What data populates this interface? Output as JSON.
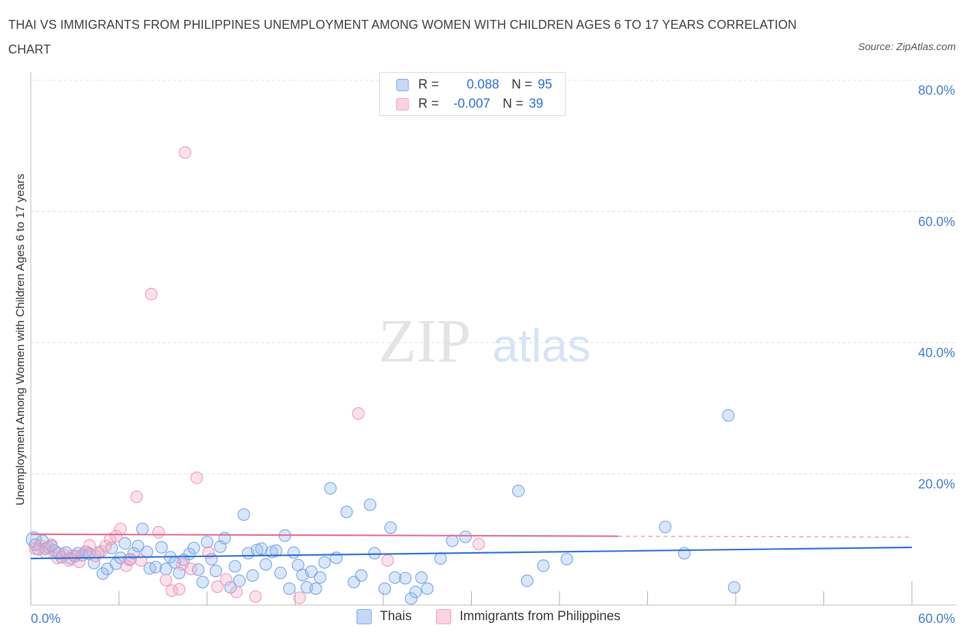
{
  "title": "THAI VS IMMIGRANTS FROM PHILIPPINES UNEMPLOYMENT AMONG WOMEN WITH CHILDREN AGES 6 TO 17 YEARS CORRELATION CHART",
  "source": "Source: ZipAtlas.com",
  "watermark": {
    "zip": "ZIP",
    "atlas": "atlas"
  },
  "legend_top": {
    "r_label": "R =",
    "n_label": "N =",
    "rows": [
      {
        "series": "Thais",
        "r": "0.088",
        "n": "95"
      },
      {
        "series": "Immigrants from Philippines",
        "r": "-0.007",
        "n": "39"
      }
    ]
  },
  "chart_data": {
    "type": "scatter",
    "title": "THAI VS IMMIGRANTS FROM PHILIPPINES UNEMPLOYMENT AMONG WOMEN WITH CHILDREN AGES 6 TO 17 YEARS CORRELATION CHART",
    "xlabel": "",
    "ylabel": "Unemployment Among Women with Children Ages 6 to 17 years",
    "xlim": [
      0,
      60
    ],
    "ylim": [
      0,
      80
    ],
    "x_tick_labels": [
      "0.0%",
      "60.0%"
    ],
    "y_tick_values": [
      20,
      40,
      60,
      80
    ],
    "y_tick_labels": [
      "20.0%",
      "40.0%",
      "60.0%",
      "80.0%"
    ],
    "grid": true,
    "colors": {
      "Thais": "#7aa6e8",
      "Immigrants from Philippines": "#f29bb7",
      "thais_line": "#2a6fd0",
      "phil_line": "#e06b93",
      "tick_label": "#3f7bd0"
    },
    "series": [
      {
        "name": "Thais",
        "trend": {
          "x": [
            0,
            60
          ],
          "y": [
            7.1,
            8.8
          ]
        },
        "points": [
          [
            0.2,
            10.0
          ],
          [
            0.3,
            9.2
          ],
          [
            0.5,
            8.5
          ],
          [
            0.8,
            9.8
          ],
          [
            1.0,
            8.6
          ],
          [
            1.2,
            8.8
          ],
          [
            1.4,
            9.0
          ],
          [
            1.6,
            8.3
          ],
          [
            1.9,
            7.9
          ],
          [
            2.1,
            7.3
          ],
          [
            2.4,
            8.0
          ],
          [
            2.7,
            7.1
          ],
          [
            3.0,
            7.4
          ],
          [
            3.2,
            7.9
          ],
          [
            3.5,
            7.6
          ],
          [
            3.8,
            8.1
          ],
          [
            4.0,
            7.8
          ],
          [
            4.3,
            6.4
          ],
          [
            4.6,
            8.0
          ],
          [
            4.9,
            4.8
          ],
          [
            5.2,
            5.5
          ],
          [
            5.5,
            8.7
          ],
          [
            5.8,
            6.3
          ],
          [
            6.1,
            7.2
          ],
          [
            6.4,
            9.4
          ],
          [
            6.7,
            6.9
          ],
          [
            7.0,
            7.9
          ],
          [
            7.3,
            9.0
          ],
          [
            7.6,
            11.6
          ],
          [
            7.9,
            8.1
          ],
          [
            8.1,
            5.6
          ],
          [
            8.5,
            5.8
          ],
          [
            8.9,
            8.8
          ],
          [
            9.2,
            5.5
          ],
          [
            9.5,
            7.3
          ],
          [
            9.8,
            6.5
          ],
          [
            10.1,
            4.9
          ],
          [
            10.4,
            6.9
          ],
          [
            10.8,
            7.8
          ],
          [
            11.1,
            8.7
          ],
          [
            11.4,
            5.4
          ],
          [
            11.7,
            3.5
          ],
          [
            12.0,
            9.6
          ],
          [
            12.3,
            7.0
          ],
          [
            12.6,
            5.2
          ],
          [
            12.9,
            8.9
          ],
          [
            13.2,
            10.2
          ],
          [
            13.6,
            2.7
          ],
          [
            13.9,
            5.9
          ],
          [
            14.2,
            3.7
          ],
          [
            14.5,
            13.8
          ],
          [
            14.8,
            7.9
          ],
          [
            15.1,
            4.5
          ],
          [
            15.4,
            8.4
          ],
          [
            15.7,
            8.6
          ],
          [
            16.0,
            6.2
          ],
          [
            16.4,
            8.1
          ],
          [
            16.7,
            8.3
          ],
          [
            17.0,
            4.9
          ],
          [
            17.3,
            10.6
          ],
          [
            17.6,
            2.5
          ],
          [
            17.9,
            8.0
          ],
          [
            18.2,
            6.1
          ],
          [
            18.5,
            4.6
          ],
          [
            18.8,
            2.7
          ],
          [
            19.1,
            5.1
          ],
          [
            19.4,
            2.5
          ],
          [
            19.7,
            4.2
          ],
          [
            20.0,
            6.5
          ],
          [
            20.4,
            17.8
          ],
          [
            20.8,
            7.2
          ],
          [
            21.5,
            14.2
          ],
          [
            22.0,
            3.5
          ],
          [
            22.5,
            4.5
          ],
          [
            23.1,
            15.3
          ],
          [
            23.4,
            7.9
          ],
          [
            24.1,
            2.5
          ],
          [
            24.5,
            11.8
          ],
          [
            24.8,
            4.2
          ],
          [
            25.5,
            4.1
          ],
          [
            25.9,
            1.0
          ],
          [
            26.2,
            2.0
          ],
          [
            26.6,
            4.2
          ],
          [
            27.0,
            2.5
          ],
          [
            27.9,
            7.1
          ],
          [
            28.7,
            9.8
          ],
          [
            29.6,
            10.4
          ],
          [
            33.2,
            17.4
          ],
          [
            33.8,
            3.7
          ],
          [
            34.9,
            6.0
          ],
          [
            36.5,
            7.0
          ],
          [
            43.2,
            11.9
          ],
          [
            44.5,
            7.9
          ],
          [
            47.5,
            28.9
          ],
          [
            47.9,
            2.7
          ]
        ]
      },
      {
        "name": "Immigrants from Philippines",
        "trend": {
          "x": [
            0,
            40
          ],
          "y": [
            10.8,
            10.5
          ],
          "dashed_to": 60
        },
        "points": [
          [
            0.3,
            8.6
          ],
          [
            0.6,
            9.1
          ],
          [
            1.0,
            8.0
          ],
          [
            1.4,
            9.2
          ],
          [
            1.8,
            7.2
          ],
          [
            2.2,
            7.7
          ],
          [
            2.6,
            6.8
          ],
          [
            2.9,
            7.6
          ],
          [
            3.3,
            6.6
          ],
          [
            3.7,
            8.1
          ],
          [
            4.0,
            9.1
          ],
          [
            4.4,
            7.5
          ],
          [
            4.8,
            8.2
          ],
          [
            5.1,
            9.0
          ],
          [
            5.4,
            10.0
          ],
          [
            5.8,
            10.5
          ],
          [
            6.1,
            11.6
          ],
          [
            6.5,
            6.0
          ],
          [
            6.8,
            7.0
          ],
          [
            7.2,
            16.5
          ],
          [
            7.5,
            6.8
          ],
          [
            8.2,
            47.4
          ],
          [
            8.7,
            11.1
          ],
          [
            9.2,
            3.8
          ],
          [
            9.6,
            2.2
          ],
          [
            10.1,
            2.4
          ],
          [
            10.3,
            6.2
          ],
          [
            10.5,
            69.0
          ],
          [
            10.9,
            5.5
          ],
          [
            11.3,
            19.4
          ],
          [
            12.1,
            8.0
          ],
          [
            12.7,
            2.8
          ],
          [
            13.3,
            3.9
          ],
          [
            14.0,
            2.0
          ],
          [
            15.3,
            1.3
          ],
          [
            18.3,
            1.1
          ],
          [
            22.3,
            29.2
          ],
          [
            24.3,
            6.8
          ],
          [
            30.5,
            9.3
          ]
        ]
      }
    ]
  },
  "legend_bottom": [
    {
      "label": "Thais"
    },
    {
      "label": "Immigrants from Philippines"
    }
  ]
}
